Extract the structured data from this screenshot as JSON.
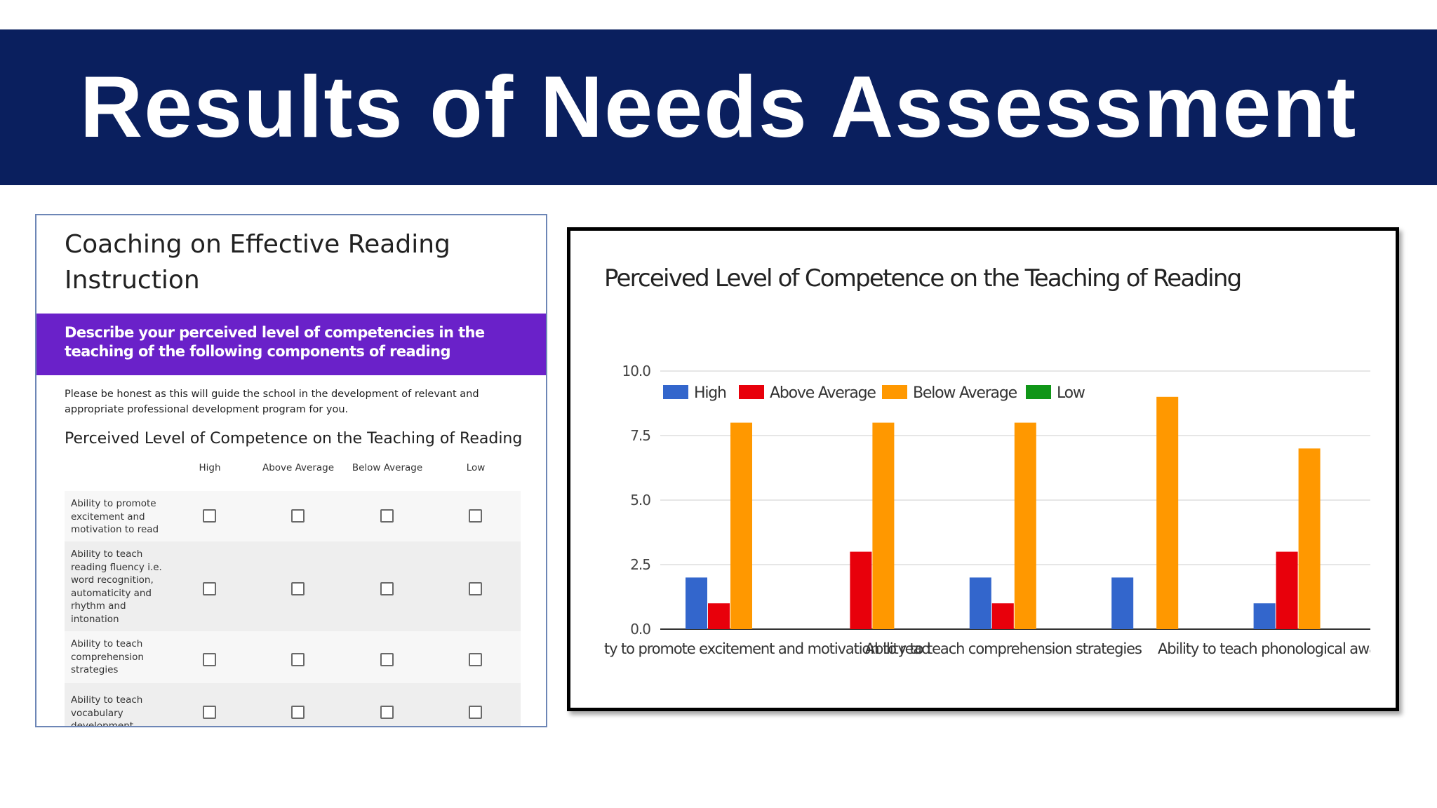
{
  "slide": {
    "title": "Results of Needs Assessment"
  },
  "colors": {
    "banner": "#0a1f5e",
    "form_section": "#6a21c9",
    "high": "#3366cc",
    "above_average": "#e8000b",
    "below_average": "#ff9800",
    "low": "#109618"
  },
  "form": {
    "title": "Coaching on Effective Reading Instruction",
    "section_title": "Describe your perceived level of competencies in the teaching of the following components of reading",
    "description": "Please be honest as this will guide the school in the development of relevant and appropriate professional development program for you.",
    "question": "Perceived Level of Competence on the Teaching of Reading",
    "columns": [
      "High",
      "Above Average",
      "Below Average",
      "Low"
    ],
    "rows": [
      {
        "label": "Ability to promote excitement and motivation to read"
      },
      {
        "label": "Ability to teach reading fluency i.e. word recognition, automaticity and rhythm and intonation"
      },
      {
        "label": "Ability to teach comprehension strategies"
      },
      {
        "label": "Ability to teach vocabulary development"
      }
    ]
  },
  "chart_data": {
    "type": "bar",
    "title": "Perceived Level of Competence on the Teaching of Reading",
    "categories": [
      "Ability to promote excitement and motivation to read",
      "Ability to teach reading fluency i.e. word recognition, automaticity and rhythm and intonation",
      "Ability to teach comprehension strategies",
      "Ability to teach vocabulary development",
      "Ability to teach phonological awareness"
    ],
    "visible_category_labels": [
      "ty to promote excitement and motivation to read",
      "Ability to teach comprehension strategies",
      "Ability to teach phonological awarene"
    ],
    "series": [
      {
        "name": "High",
        "color": "#3366cc",
        "values": [
          2,
          0,
          2,
          2,
          1
        ]
      },
      {
        "name": "Above Average",
        "color": "#e8000b",
        "values": [
          1,
          3,
          1,
          0,
          3
        ]
      },
      {
        "name": "Below Average",
        "color": "#ff9800",
        "values": [
          8,
          8,
          8,
          9,
          7
        ]
      },
      {
        "name": "Low",
        "color": "#109618",
        "values": [
          0,
          0,
          0,
          0,
          0
        ]
      }
    ],
    "ylim": [
      0,
      10
    ],
    "yticks": [
      "0.0",
      "2.5",
      "5.0",
      "7.5",
      "10.0"
    ],
    "grid": true,
    "legend": "top-left",
    "xlabel": "",
    "ylabel": ""
  }
}
